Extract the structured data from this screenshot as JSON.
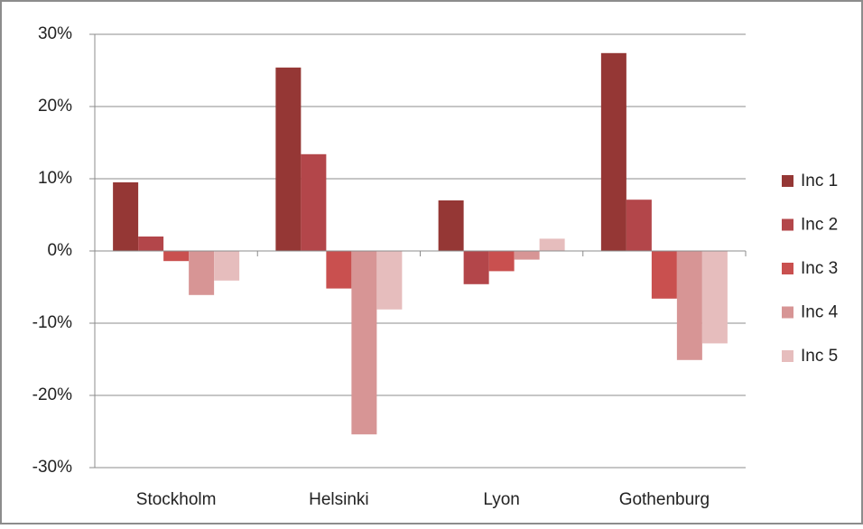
{
  "chart_data": {
    "type": "bar",
    "categories": [
      "Stockholm",
      "Helsinki",
      "Lyon",
      "Gothenburg"
    ],
    "series": [
      {
        "name": "Inc 1",
        "color": "#953735",
        "values": [
          9.5,
          25.4,
          7.0,
          27.4
        ]
      },
      {
        "name": "Inc 2",
        "color": "#b3464a",
        "values": [
          2.0,
          13.4,
          -4.6,
          7.1
        ]
      },
      {
        "name": "Inc 3",
        "color": "#c9504f",
        "values": [
          -1.4,
          -5.2,
          -2.8,
          -6.6
        ]
      },
      {
        "name": "Inc 4",
        "color": "#d79595",
        "values": [
          -6.1,
          -25.4,
          -1.2,
          -15.1
        ]
      },
      {
        "name": "Inc 5",
        "color": "#e6bdbd",
        "values": [
          -4.1,
          -8.1,
          1.7,
          -12.8
        ]
      }
    ],
    "ylim": [
      -30,
      30
    ],
    "yticks": [
      {
        "value": -30,
        "label": "-30%"
      },
      {
        "value": -20,
        "label": "-20%"
      },
      {
        "value": -10,
        "label": "-10%"
      },
      {
        "value": 0,
        "label": "0%"
      },
      {
        "value": 10,
        "label": "10%"
      },
      {
        "value": 20,
        "label": "20%"
      },
      {
        "value": 30,
        "label": "30%"
      }
    ],
    "grid": true,
    "legend": "right"
  }
}
